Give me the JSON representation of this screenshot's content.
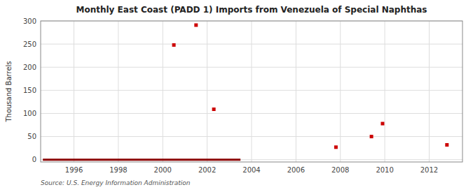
{
  "chart_data": {
    "type": "scatter",
    "title": "Monthly East Coast (PADD 1) Imports from Venezuela of Special Naphthas",
    "ylabel": "Thousand Barrels",
    "annotation": "Source: U.S. Energy Information Administration",
    "xlim": [
      1994.5,
      2013.5
    ],
    "ylim": [
      -5,
      300
    ],
    "xticks": [
      1996,
      1998,
      2000,
      2002,
      2004,
      2006,
      2008,
      2010,
      2012
    ],
    "yticks": [
      0,
      50,
      100,
      150,
      200,
      250,
      300
    ],
    "grid": true,
    "series": [
      {
        "type": "line",
        "color": "#8b0000",
        "x": [
          1994.6,
          2003.5
        ],
        "values": [
          0,
          0
        ]
      },
      {
        "type": "scatter",
        "color": "#cc0000",
        "marker": "square",
        "x": [
          2000.5,
          2001.5,
          2002.3,
          2007.8,
          2009.4,
          2009.9,
          2012.8
        ],
        "values": [
          248,
          291,
          109,
          27,
          50,
          78,
          32
        ]
      }
    ]
  }
}
